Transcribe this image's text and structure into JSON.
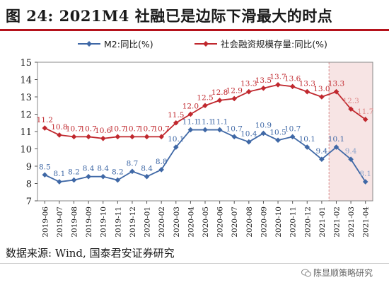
{
  "header": {
    "title": "图 24:  2021M4 社融已是边际下滑最大的时点"
  },
  "footer": {
    "source": "数据来源:  Wind, 国泰君安证券研究"
  },
  "watermark": {
    "text": "陈显顺策略研究",
    "icon": "wechat-icon"
  },
  "colors": {
    "m2": "#3f68a6",
    "tsf": "#c0282e",
    "rule": "#b5121b",
    "forecast_shade": "#f7e4e4"
  },
  "chart_data": {
    "type": "line",
    "categories": [
      "2019-06",
      "2019-07",
      "2019-08",
      "2019-09",
      "2019-10",
      "2019-11",
      "2019-12",
      "2020-01",
      "2020-02",
      "2020-03",
      "2020-04",
      "2020-05",
      "2020-06",
      "2020-07",
      "2020-08",
      "2020-09",
      "2020-10",
      "2020-11",
      "2020-12",
      "2021-01",
      "2021-02",
      "2021-03",
      "2021-04"
    ],
    "ylim": [
      7,
      15
    ],
    "yticks": [
      7,
      8,
      9,
      10,
      11,
      12,
      13,
      14,
      15
    ],
    "grid": false,
    "legend_position": "top-center",
    "forecast_start": "2021-02",
    "series": [
      {
        "name": "M2:同比(%)",
        "color": "#3f68a6",
        "marker": "diamond",
        "values": [
          8.5,
          8.1,
          8.2,
          8.4,
          8.4,
          8.2,
          8.7,
          8.4,
          8.8,
          10.1,
          11.1,
          11.1,
          11.1,
          10.7,
          10.4,
          10.9,
          10.5,
          10.7,
          10.1,
          9.4,
          10.1,
          9.4,
          8.1
        ],
        "labels": [
          "8.5",
          "8.1",
          "8.2",
          "8.4",
          "8.4",
          "8.2",
          "8.7",
          "8.4",
          "8.8",
          "10.1",
          "11.1",
          "11.1",
          "11.1",
          "10.7",
          "10.4",
          "10.9",
          "10.5",
          "10.7",
          "10.1",
          "9.4",
          "10.1",
          "9.4",
          "8.1"
        ]
      },
      {
        "name": "社会融资规模存量:同比(%)",
        "color": "#c0282e",
        "marker": "diamond",
        "values": [
          11.2,
          10.8,
          10.7,
          10.7,
          10.6,
          10.7,
          10.7,
          10.7,
          10.7,
          11.5,
          12.0,
          12.5,
          12.8,
          12.9,
          13.3,
          13.5,
          13.7,
          13.6,
          13.3,
          13.0,
          13.3,
          12.3,
          11.7
        ],
        "labels": [
          "11.2",
          "10.8",
          "10.7",
          "10.7",
          "10.6",
          "10.7",
          "10.7",
          "10.7",
          "10.7",
          "11.5",
          "12.0",
          "12.5",
          "12.8",
          "12.9",
          "13.3",
          "13.5",
          "13.7",
          "13.6",
          "13.3",
          "13.0",
          "13.3",
          "12.3",
          "11.7"
        ]
      }
    ]
  }
}
